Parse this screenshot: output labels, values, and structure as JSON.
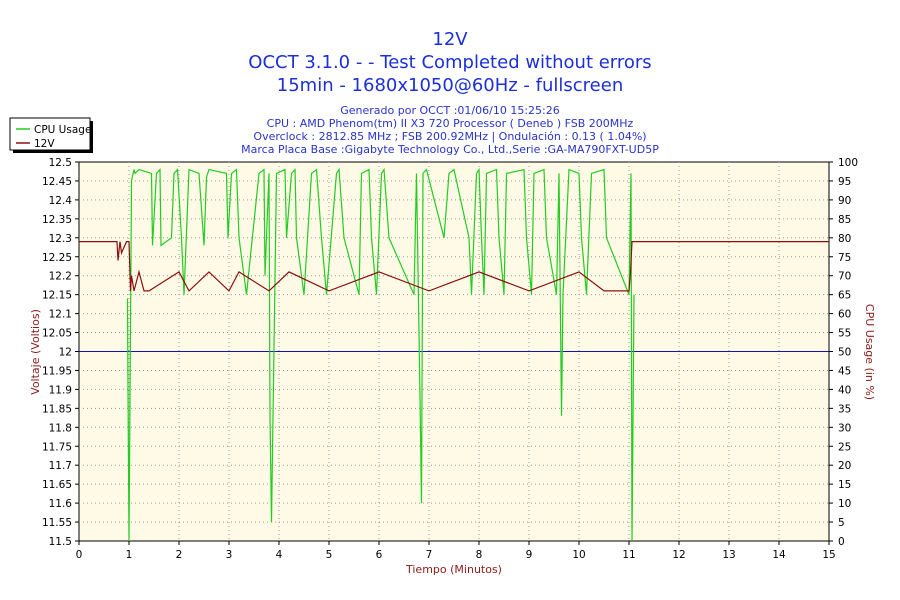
{
  "chart_data": {
    "type": "line",
    "title": "12V",
    "subtitle_lines": [
      "OCCT 3.1.0 -  - Test Completed without errors",
      "15min - 1680x1050@60Hz - fullscreen"
    ],
    "info_lines": [
      "Generado por OCCT :01/06/10 15:25:26",
      "CPU : AMD Phenom(tm) II X3 720 Processor ( Deneb ) FSB 200MHz",
      "Overclock : 2812.85 MHz ; FSB 200.92MHz | Ondulación : 0.13 ( 1.04%)",
      "Marca Placa Base :Gigabyte Technology Co., Ltd.,Serie :GA-MA790FXT-UD5P"
    ],
    "xlabel": "Tiempo (Minutos)",
    "ylabel_left": "Voltaje (Voltios)",
    "ylabel_right": "CPU Usage (in %)",
    "xlim": [
      0,
      15
    ],
    "ylim_left": [
      11.5,
      12.5
    ],
    "ylim_right": [
      0,
      100
    ],
    "x_ticks": [
      "0",
      "1",
      "2",
      "3",
      "4",
      "5",
      "6",
      "7",
      "8",
      "9",
      "10",
      "11",
      "12",
      "13",
      "14",
      "15"
    ],
    "y_ticks_left": [
      "11.5",
      "11.55",
      "11.6",
      "11.65",
      "11.7",
      "11.75",
      "11.8",
      "11.85",
      "11.9",
      "11.95",
      "12",
      "12.05",
      "12.1",
      "12.15",
      "12.2",
      "12.25",
      "12.3",
      "12.35",
      "12.4",
      "12.45",
      "12.5"
    ],
    "y_ticks_right": [
      "0",
      "5",
      "10",
      "15",
      "20",
      "25",
      "30",
      "35",
      "40",
      "45",
      "50",
      "55",
      "60",
      "65",
      "70",
      "75",
      "80",
      "85",
      "90",
      "95",
      "100"
    ],
    "reference_line": {
      "y": 12,
      "color": "#1414b4"
    },
    "grid": true,
    "legend_position": "top-left",
    "series": [
      {
        "name": "CPU Usage",
        "axis": "right",
        "color": "#22cc22",
        "x": [
          0.97,
          0.98,
          1.0,
          1.05,
          1.1,
          1.12,
          1.2,
          1.45,
          1.47,
          1.55,
          1.62,
          1.64,
          1.85,
          1.9,
          1.97,
          2.05,
          2.1,
          2.2,
          2.4,
          2.5,
          2.55,
          2.6,
          2.95,
          2.98,
          3.05,
          3.15,
          3.2,
          3.35,
          3.6,
          3.7,
          3.72,
          3.8,
          3.82,
          3.85,
          3.95,
          4.12,
          4.15,
          4.25,
          4.32,
          4.35,
          4.5,
          4.65,
          4.75,
          4.85,
          4.95,
          5.15,
          5.2,
          5.3,
          5.6,
          5.65,
          5.8,
          5.85,
          5.95,
          6.05,
          6.1,
          6.2,
          6.7,
          6.75,
          6.82,
          6.85,
          6.88,
          6.95,
          7.3,
          7.4,
          7.5,
          7.8,
          7.85,
          7.95,
          8.0,
          8.05,
          8.1,
          8.15,
          8.35,
          8.4,
          8.5,
          8.55,
          8.9,
          8.95,
          9.05,
          9.1,
          9.3,
          9.35,
          9.55,
          9.6,
          9.65,
          9.68,
          9.8,
          10.0,
          10.05,
          10.15,
          10.25,
          10.5,
          10.55,
          11.0,
          11.04,
          11.06,
          11.1
        ],
        "y": [
          64,
          40,
          0,
          95,
          98,
          97,
          98,
          97,
          78,
          97,
          98,
          78,
          80,
          97,
          98,
          80,
          65,
          98,
          97,
          78,
          96,
          98,
          97,
          80,
          97,
          98,
          80,
          65,
          97,
          98,
          70,
          97,
          33,
          5,
          97,
          98,
          80,
          97,
          98,
          80,
          65,
          97,
          98,
          80,
          65,
          97,
          98,
          80,
          65,
          97,
          98,
          80,
          65,
          97,
          98,
          80,
          65,
          97,
          38,
          10,
          97,
          98,
          80,
          97,
          98,
          80,
          65,
          97,
          98,
          80,
          65,
          97,
          98,
          80,
          65,
          97,
          98,
          80,
          65,
          97,
          98,
          80,
          65,
          97,
          33,
          65,
          98,
          97,
          80,
          65,
          97,
          98,
          80,
          65,
          97,
          0,
          65
        ]
      },
      {
        "name": "12V",
        "axis": "left",
        "color": "#8b1010",
        "x": [
          0,
          0.76,
          0.78,
          0.82,
          0.85,
          0.95,
          1.0,
          1.03,
          1.05,
          1.1,
          1.2,
          1.3,
          1.4,
          2.0,
          2.2,
          2.6,
          3.0,
          3.2,
          3.8,
          4.2,
          5.0,
          6.0,
          7.0,
          8.0,
          9.0,
          10.0,
          10.5,
          11.0,
          11.03,
          11.06,
          15
        ],
        "y": [
          12.29,
          12.29,
          12.24,
          12.29,
          12.26,
          12.29,
          12.29,
          12.16,
          12.2,
          12.16,
          12.21,
          12.16,
          12.16,
          12.21,
          12.16,
          12.21,
          12.16,
          12.21,
          12.16,
          12.21,
          12.16,
          12.21,
          12.16,
          12.21,
          12.16,
          12.21,
          12.16,
          12.16,
          12.21,
          12.29,
          12.29
        ]
      }
    ]
  }
}
